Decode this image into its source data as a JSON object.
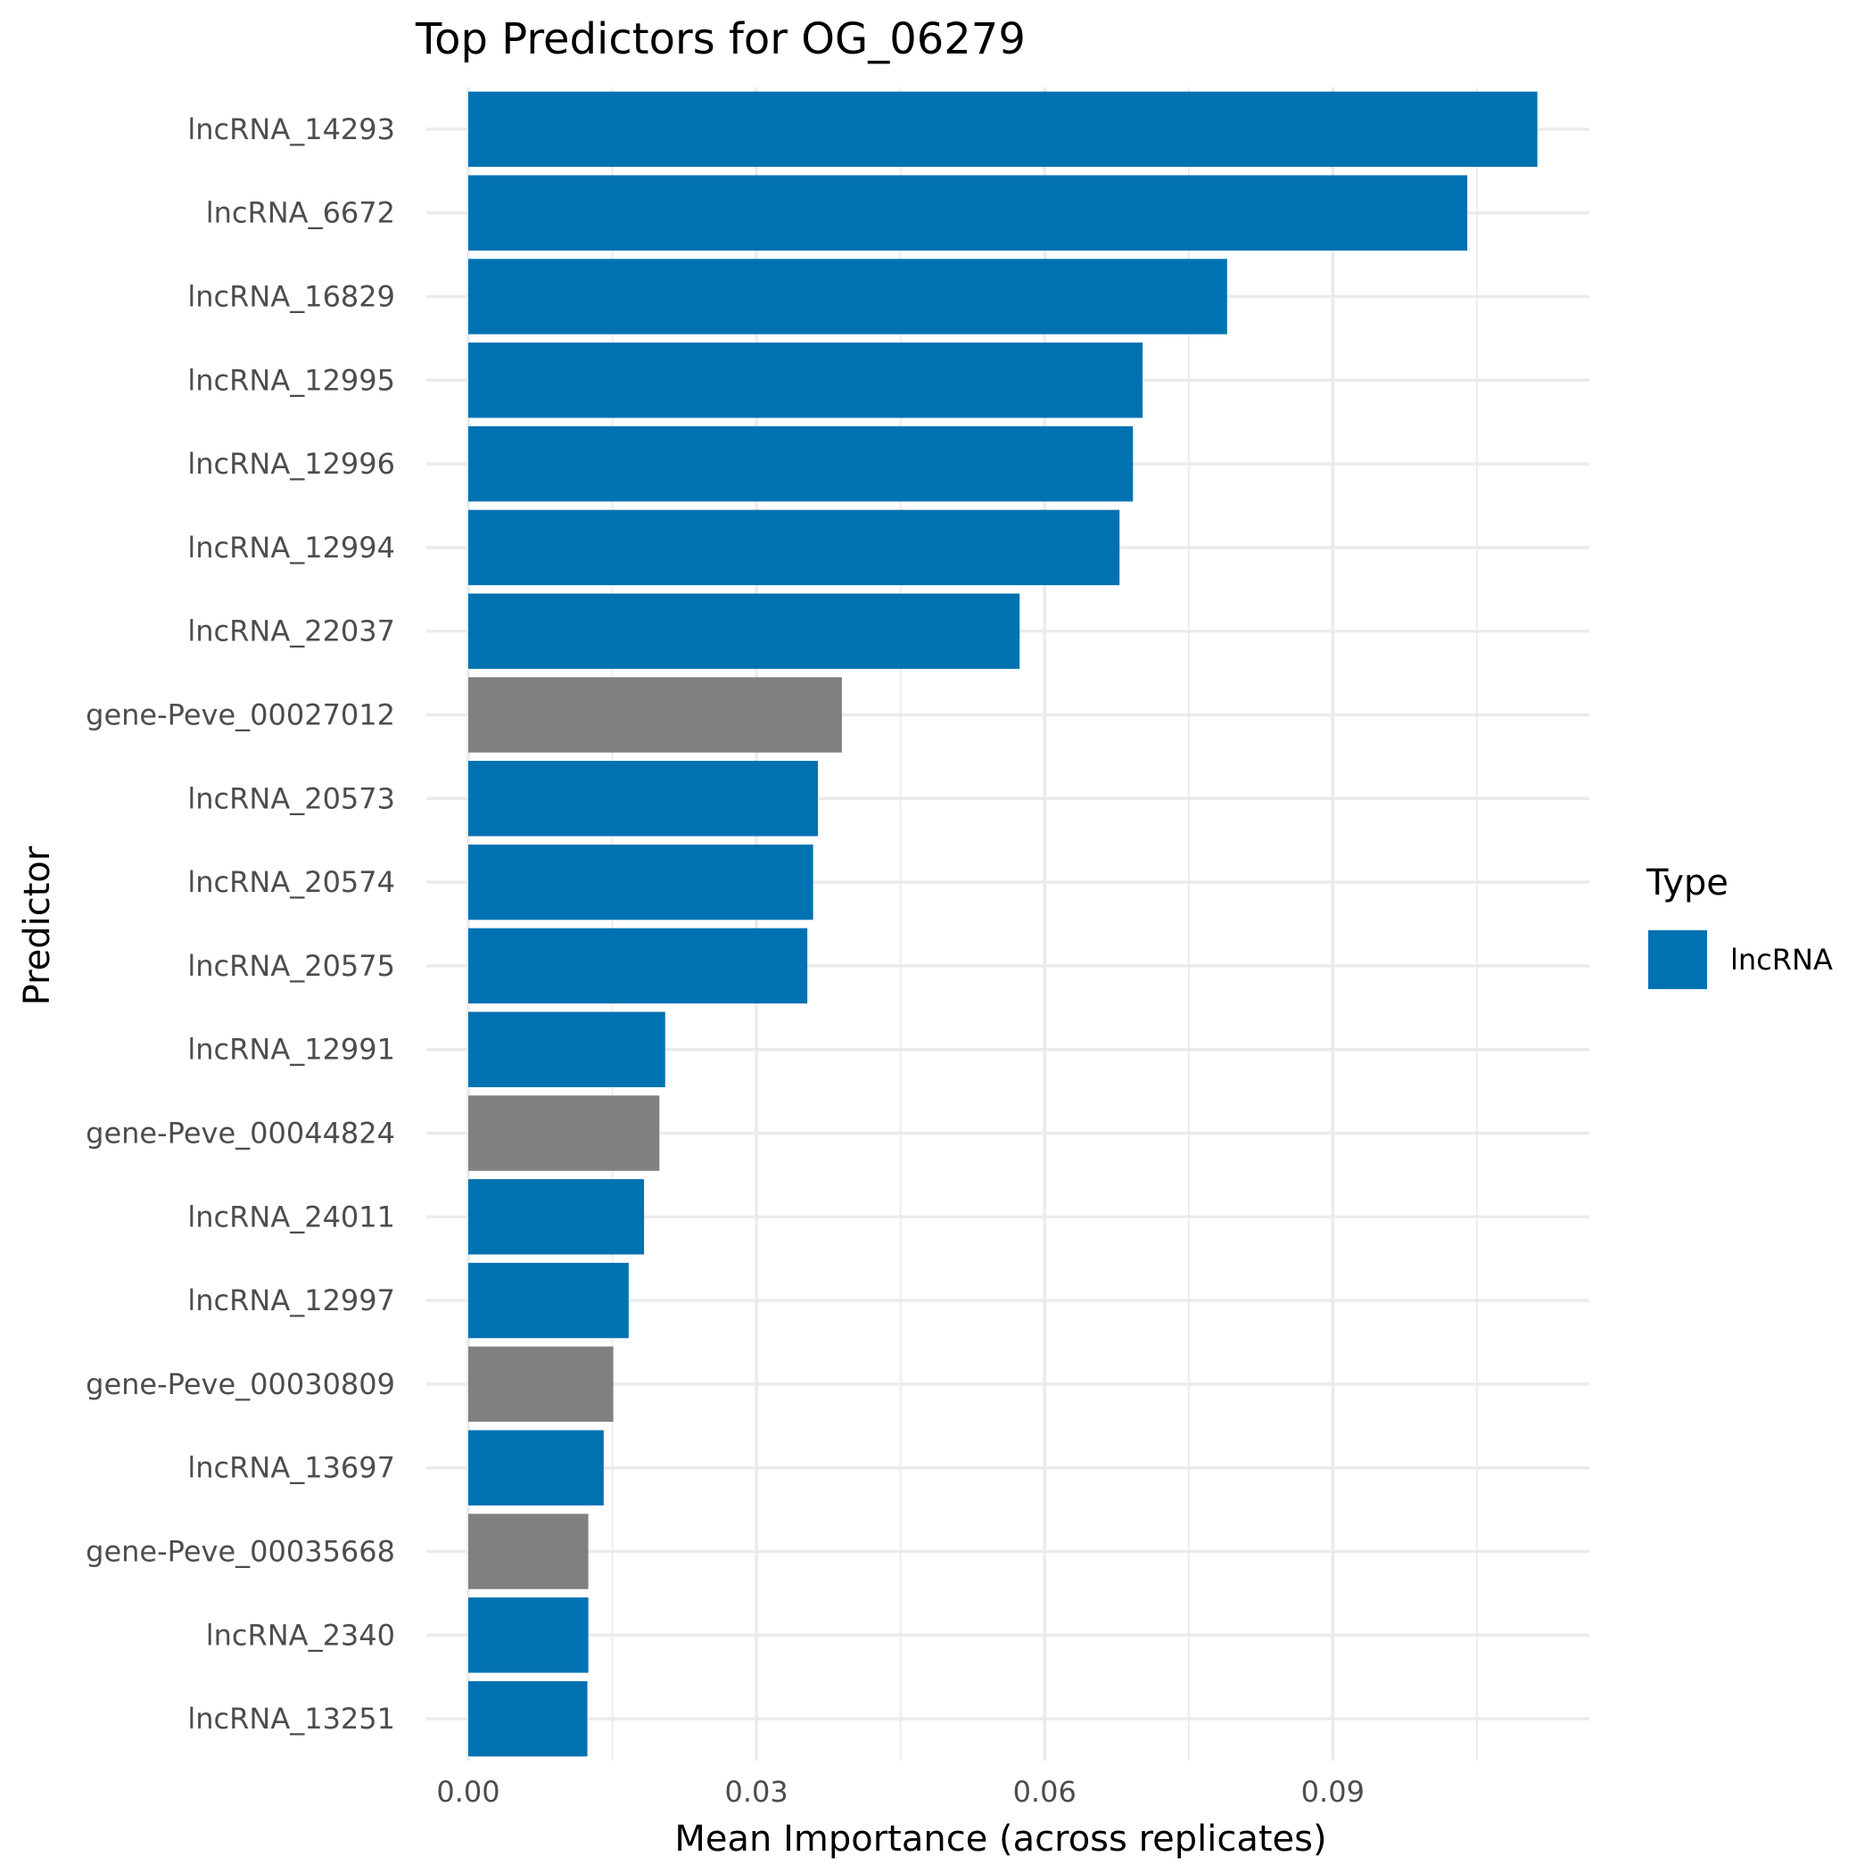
{
  "chart_data": {
    "type": "bar",
    "orientation": "horizontal",
    "title": "Top Predictors for OG_06279",
    "xlabel": "Mean Importance (across replicates)",
    "ylabel": "Predictor",
    "xlim": [
      0,
      0.116
    ],
    "x_ticks": [
      {
        "value": 0.0,
        "label": "0.00"
      },
      {
        "value": 0.03,
        "label": "0.03"
      },
      {
        "value": 0.06,
        "label": "0.06"
      },
      {
        "value": 0.09,
        "label": "0.09"
      }
    ],
    "grid": true,
    "legend": {
      "title": "Type",
      "placement": "right",
      "entries": [
        {
          "label": "lncRNA",
          "color": "#0072B2"
        }
      ]
    },
    "colors": {
      "lncRNA": "#0072B2",
      "gene": "#808080"
    },
    "categories": [
      "lncRNA_14293",
      "lncRNA_6672",
      "lncRNA_16829",
      "lncRNA_12995",
      "lncRNA_12996",
      "lncRNA_12994",
      "lncRNA_22037",
      "gene-Peve_00027012",
      "lncRNA_20573",
      "lncRNA_20574",
      "lncRNA_20575",
      "lncRNA_12991",
      "gene-Peve_00044824",
      "lncRNA_24011",
      "lncRNA_12997",
      "gene-Peve_00030809",
      "lncRNA_13697",
      "gene-Peve_00035668",
      "lncRNA_2340",
      "lncRNA_13251"
    ],
    "values": [
      0.1113,
      0.104,
      0.079,
      0.0702,
      0.0692,
      0.0678,
      0.0574,
      0.0389,
      0.0364,
      0.0359,
      0.0353,
      0.0205,
      0.0199,
      0.0183,
      0.0167,
      0.0151,
      0.0141,
      0.0125,
      0.0125,
      0.0124
    ],
    "types": [
      "lncRNA",
      "lncRNA",
      "lncRNA",
      "lncRNA",
      "lncRNA",
      "lncRNA",
      "lncRNA",
      "gene",
      "lncRNA",
      "lncRNA",
      "lncRNA",
      "lncRNA",
      "gene",
      "lncRNA",
      "lncRNA",
      "gene",
      "lncRNA",
      "gene",
      "lncRNA",
      "lncRNA"
    ]
  }
}
